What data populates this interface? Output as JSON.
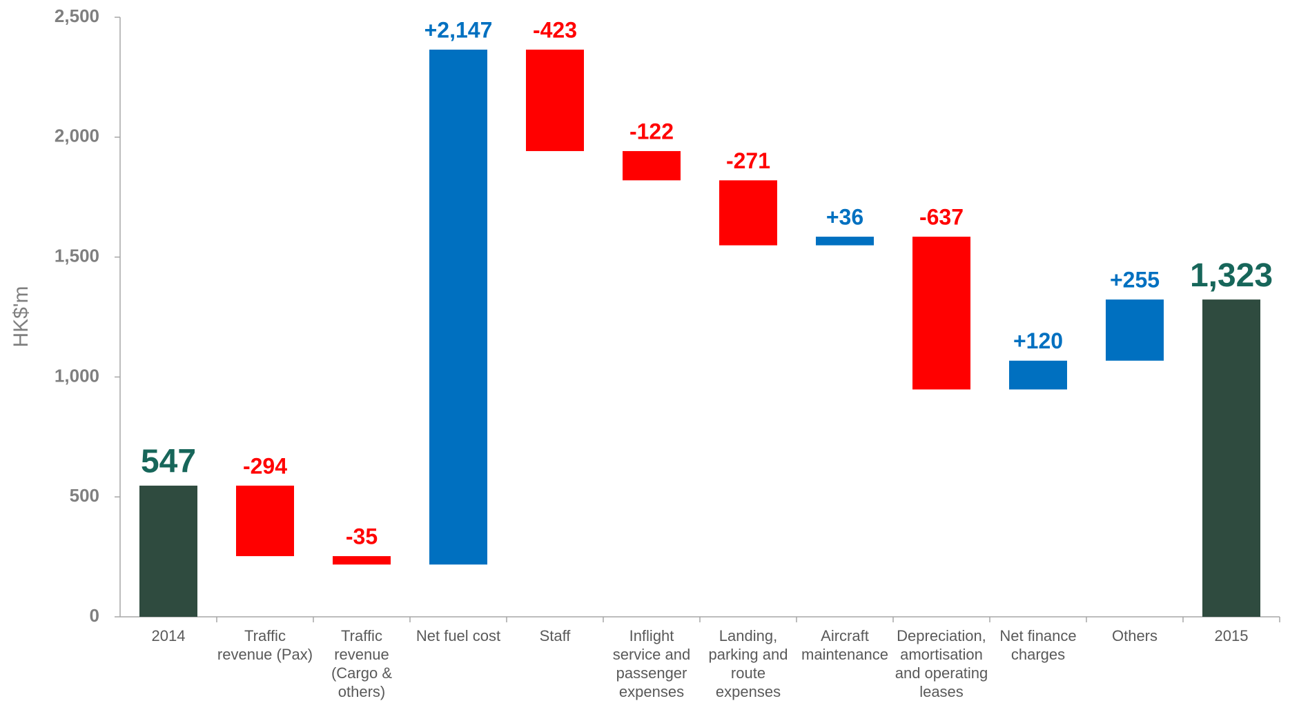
{
  "chart_data": {
    "type": "waterfall",
    "y_label": "HK$'m",
    "categories": [
      "2014",
      "Traffic revenue (Pax)",
      "Traffic revenue (Cargo & others)",
      "Net fuel cost",
      "Staff",
      "Inflight service and passenger expenses",
      "Landing, parking and route expenses",
      "Aircraft maintenance",
      "Depreciation, amortisation and operating leases",
      "Net finance charges",
      "Others",
      "2015"
    ],
    "measure": [
      "total",
      "relative",
      "relative",
      "relative",
      "relative",
      "relative",
      "relative",
      "relative",
      "relative",
      "relative",
      "relative",
      "total"
    ],
    "values": [
      547,
      -294,
      -35,
      2147,
      -423,
      -122,
      -271,
      36,
      -637,
      120,
      255,
      1323
    ],
    "value_labels": [
      "547",
      "-294",
      "-35",
      "+2,147",
      "-423",
      "-122",
      "-271",
      "+36",
      "-637",
      "+120",
      "+255",
      "1,323"
    ],
    "colors": {
      "total": "#2f4b3f",
      "increase": "#0070c0",
      "decrease": "#ff0000",
      "total_label": "#17665a"
    },
    "ylim": [
      0,
      2500
    ],
    "yticks": [
      0,
      500,
      {
        "value": 1000,
        "label": "1,000"
      },
      {
        "value": 1500,
        "label": "1,500"
      },
      {
        "value": 2000,
        "label": "2,000"
      },
      {
        "value": 2500,
        "label": "2,500"
      }
    ]
  }
}
